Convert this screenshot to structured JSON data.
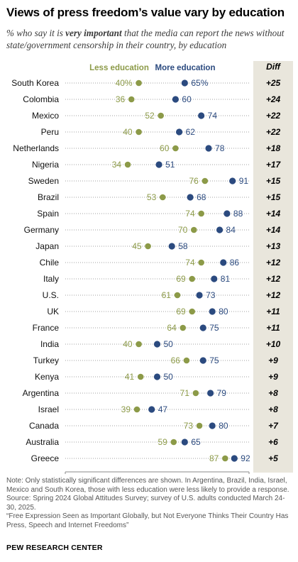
{
  "header": {
    "title": "Views of press freedom’s value vary by education",
    "subtitle_pre": "% who say it is ",
    "subtitle_bold": "very important",
    "subtitle_post": " that the media can report the news without state/government censorship in their country, by education"
  },
  "colors": {
    "less": "#8c9a48",
    "more": "#2b4a7f",
    "diff_band": "#e9e6dc",
    "dots_line": "#a0a0a0"
  },
  "chart_data": {
    "type": "scatter",
    "legend_less": "Less education",
    "legend_more": "More education",
    "diff_header": "Diff",
    "xlim": [
      0,
      100
    ],
    "x_ticks": [
      "0",
      "100"
    ],
    "rows": [
      {
        "country": "South Korea",
        "less": 40,
        "more": 65,
        "less_label": "40%",
        "more_label": "65%",
        "diff": "+25"
      },
      {
        "country": "Colombia",
        "less": 36,
        "more": 60,
        "less_label": "36",
        "more_label": "60",
        "diff": "+24"
      },
      {
        "country": "Mexico",
        "less": 52,
        "more": 74,
        "less_label": "52",
        "more_label": "74",
        "diff": "+22"
      },
      {
        "country": "Peru",
        "less": 40,
        "more": 62,
        "less_label": "40",
        "more_label": "62",
        "diff": "+22"
      },
      {
        "country": "Netherlands",
        "less": 60,
        "more": 78,
        "less_label": "60",
        "more_label": "78",
        "diff": "+18"
      },
      {
        "country": "Nigeria",
        "less": 34,
        "more": 51,
        "less_label": "34",
        "more_label": "51",
        "diff": "+17"
      },
      {
        "country": "Sweden",
        "less": 76,
        "more": 91,
        "less_label": "76",
        "more_label": "91",
        "diff": "+15"
      },
      {
        "country": "Brazil",
        "less": 53,
        "more": 68,
        "less_label": "53",
        "more_label": "68",
        "diff": "+15"
      },
      {
        "country": "Spain",
        "less": 74,
        "more": 88,
        "less_label": "74",
        "more_label": "88",
        "diff": "+14"
      },
      {
        "country": "Germany",
        "less": 70,
        "more": 84,
        "less_label": "70",
        "more_label": "84",
        "diff": "+14"
      },
      {
        "country": "Japan",
        "less": 45,
        "more": 58,
        "less_label": "45",
        "more_label": "58",
        "diff": "+13"
      },
      {
        "country": "Chile",
        "less": 74,
        "more": 86,
        "less_label": "74",
        "more_label": "86",
        "diff": "+12"
      },
      {
        "country": "Italy",
        "less": 69,
        "more": 81,
        "less_label": "69",
        "more_label": "81",
        "diff": "+12"
      },
      {
        "country": "U.S.",
        "less": 61,
        "more": 73,
        "less_label": "61",
        "more_label": "73",
        "diff": "+12"
      },
      {
        "country": "UK",
        "less": 69,
        "more": 80,
        "less_label": "69",
        "more_label": "80",
        "diff": "+11"
      },
      {
        "country": "France",
        "less": 64,
        "more": 75,
        "less_label": "64",
        "more_label": "75",
        "diff": "+11"
      },
      {
        "country": "India",
        "less": 40,
        "more": 50,
        "less_label": "40",
        "more_label": "50",
        "diff": "+10"
      },
      {
        "country": "Turkey",
        "less": 66,
        "more": 75,
        "less_label": "66",
        "more_label": "75",
        "diff": "+9"
      },
      {
        "country": "Kenya",
        "less": 41,
        "more": 50,
        "less_label": "41",
        "more_label": "50",
        "diff": "+9"
      },
      {
        "country": "Argentina",
        "less": 71,
        "more": 79,
        "less_label": "71",
        "more_label": "79",
        "diff": "+8"
      },
      {
        "country": "Israel",
        "less": 39,
        "more": 47,
        "less_label": "39",
        "more_label": "47",
        "diff": "+8"
      },
      {
        "country": "Canada",
        "less": 73,
        "more": 80,
        "less_label": "73",
        "more_label": "80",
        "diff": "+7"
      },
      {
        "country": "Australia",
        "less": 59,
        "more": 65,
        "less_label": "59",
        "more_label": "65",
        "diff": "+6"
      },
      {
        "country": "Greece",
        "less": 87,
        "more": 92,
        "less_label": "87",
        "more_label": "92",
        "diff": "+5"
      }
    ]
  },
  "footer": {
    "note": "Note: Only statistically significant differences are shown. In Argentina, Brazil, India, Israel, Mexico and South Korea, those with less education were less likely to provide a response.",
    "source": "Source: Spring 2024 Global Attitudes Survey; survey of U.S. adults conducted March 24-30, 2025.",
    "report": "“Free Expression Seen as Important Globally, but Not Everyone Thinks Their Country Has Press, Speech and Internet Freedoms”",
    "org": "PEW RESEARCH CENTER"
  }
}
